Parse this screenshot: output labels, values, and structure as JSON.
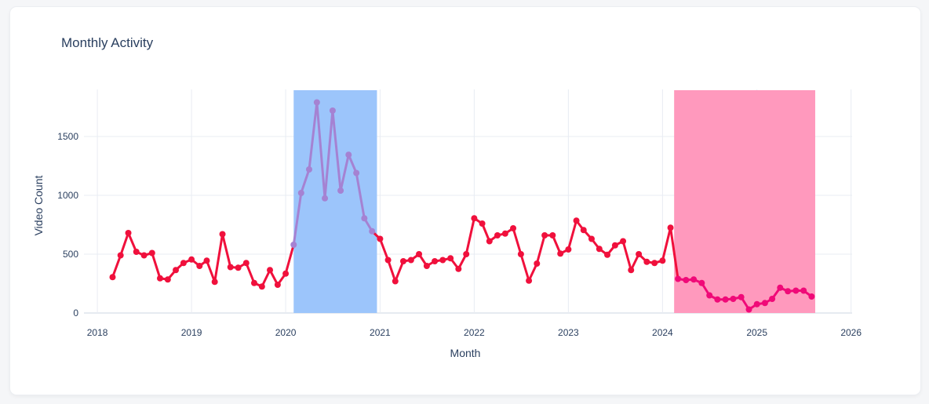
{
  "title": "Monthly Activity",
  "chart_data": {
    "type": "line",
    "title": "Monthly Activity",
    "xlabel": "Month",
    "ylabel": "Video Count",
    "xlim": [
      "2017-11-10",
      "2026-01-05"
    ],
    "ylim": [
      0,
      1900
    ],
    "x_ticks": [
      "2018",
      "2019",
      "2020",
      "2021",
      "2022",
      "2023",
      "2024",
      "2025",
      "2026"
    ],
    "y_ticks": [
      0,
      500,
      1000,
      1500
    ],
    "y_tick_labels": [
      "0",
      "500",
      "1000",
      "1500"
    ],
    "grid": true,
    "colors": {
      "series": "#f0103c",
      "highlight_1_line": "#a582d2",
      "highlight_2_line": "#f00a78",
      "band_1": "#9cc5fb",
      "band_2": "#ff99bd",
      "grid": "#e8ecf3"
    },
    "bands": [
      {
        "start": "2020-02-01",
        "end": "2020-12-20"
      },
      {
        "start": "2024-02-15",
        "end": "2025-08-15"
      }
    ],
    "series": [
      {
        "x": [
          "2018-03",
          "2018-04",
          "2018-05",
          "2018-06",
          "2018-07",
          "2018-08",
          "2018-09",
          "2018-10",
          "2018-11",
          "2018-12",
          "2019-01",
          "2019-02",
          "2019-03",
          "2019-04",
          "2019-05",
          "2019-06",
          "2019-07",
          "2019-08",
          "2019-09",
          "2019-10",
          "2019-11",
          "2019-12",
          "2020-01",
          "2020-02",
          "2020-03",
          "2020-04",
          "2020-05",
          "2020-06",
          "2020-07",
          "2020-08",
          "2020-09",
          "2020-10",
          "2020-11",
          "2020-12",
          "2021-01",
          "2021-02",
          "2021-03",
          "2021-04",
          "2021-05",
          "2021-06",
          "2021-07",
          "2021-08",
          "2021-09",
          "2021-10",
          "2021-11",
          "2021-12",
          "2022-01",
          "2022-02",
          "2022-03",
          "2022-04",
          "2022-05",
          "2022-06",
          "2022-07",
          "2022-08",
          "2022-09",
          "2022-10",
          "2022-11",
          "2022-12",
          "2023-01",
          "2023-02",
          "2023-03",
          "2023-04",
          "2023-05",
          "2023-06",
          "2023-07",
          "2023-08",
          "2023-09",
          "2023-10",
          "2023-11",
          "2023-12",
          "2024-01",
          "2024-02",
          "2024-03",
          "2024-04",
          "2024-05",
          "2024-06",
          "2024-07",
          "2024-08",
          "2024-09",
          "2024-10",
          "2024-11",
          "2024-12",
          "2025-01",
          "2025-02",
          "2025-03",
          "2025-04",
          "2025-05",
          "2025-06",
          "2025-07",
          "2025-08"
        ],
        "values": [
          305,
          490,
          680,
          520,
          490,
          510,
          295,
          285,
          365,
          425,
          455,
          400,
          445,
          265,
          670,
          390,
          385,
          425,
          255,
          225,
          365,
          240,
          335,
          580,
          1020,
          1220,
          1790,
          975,
          1720,
          1040,
          1345,
          1190,
          805,
          695,
          630,
          450,
          270,
          440,
          450,
          500,
          400,
          440,
          450,
          465,
          375,
          500,
          805,
          760,
          610,
          660,
          675,
          720,
          500,
          275,
          420,
          660,
          660,
          505,
          540,
          785,
          705,
          630,
          545,
          495,
          575,
          610,
          365,
          500,
          435,
          425,
          445,
          725,
          290,
          280,
          285,
          255,
          150,
          115,
          115,
          120,
          135,
          30,
          75,
          85,
          120,
          215,
          185,
          190,
          190,
          140
        ]
      }
    ]
  }
}
